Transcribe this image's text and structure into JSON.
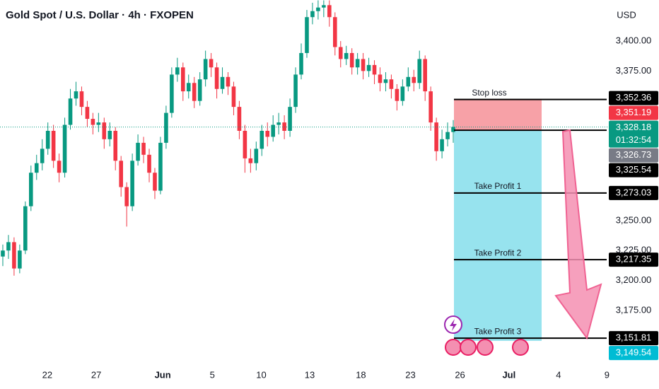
{
  "chart_data": {
    "type": "candlestick",
    "title": "Gold Spot / U.S. Dollar · 4h · FXOPEN",
    "currency": "USD",
    "up_color": "#089981",
    "down_color": "#f23645",
    "open": [
      3220,
      3225,
      3232,
      3210,
      3225,
      3262,
      3290,
      3298,
      3310,
      3325,
      3300,
      3290,
      3330,
      3352,
      3358,
      3345,
      3335,
      3330,
      3332,
      3318,
      3325,
      3300,
      3278,
      3262,
      3300,
      3315,
      3305,
      3290,
      3275,
      3315,
      3340,
      3372,
      3378,
      3358,
      3365,
      3350,
      3368,
      3385,
      3378,
      3360,
      3370,
      3362,
      3345,
      3325,
      3302,
      3298,
      3310,
      3325,
      3320,
      3330,
      3332,
      3325,
      3345,
      3372,
      3390,
      3420,
      3425,
      3428,
      3430,
      3420,
      3395,
      3385,
      3390,
      3378,
      3385,
      3375,
      3380,
      3372,
      3365,
      3368,
      3360,
      3350,
      3362,
      3370,
      3365,
      3385,
      3358,
      3332,
      3308,
      3318,
      3324
    ],
    "high": [
      3230,
      3238,
      3236,
      3230,
      3266,
      3296,
      3305,
      3318,
      3332,
      3330,
      3306,
      3336,
      3360,
      3366,
      3362,
      3350,
      3340,
      3340,
      3336,
      3332,
      3328,
      3304,
      3282,
      3306,
      3322,
      3320,
      3310,
      3294,
      3320,
      3346,
      3378,
      3386,
      3382,
      3372,
      3370,
      3374,
      3392,
      3390,
      3382,
      3378,
      3374,
      3366,
      3350,
      3330,
      3310,
      3316,
      3330,
      3332,
      3338,
      3340,
      3338,
      3352,
      3378,
      3398,
      3426,
      3432,
      3434,
      3434,
      3434,
      3424,
      3400,
      3396,
      3394,
      3390,
      3390,
      3386,
      3384,
      3378,
      3374,
      3372,
      3364,
      3368,
      3378,
      3376,
      3392,
      3388,
      3362,
      3336,
      3326,
      3332,
      3334
    ],
    "low": [
      3212,
      3218,
      3204,
      3206,
      3222,
      3258,
      3284,
      3292,
      3305,
      3294,
      3282,
      3286,
      3326,
      3346,
      3338,
      3328,
      3322,
      3324,
      3310,
      3312,
      3292,
      3270,
      3245,
      3258,
      3296,
      3298,
      3282,
      3268,
      3272,
      3310,
      3336,
      3366,
      3350,
      3352,
      3344,
      3346,
      3362,
      3370,
      3352,
      3356,
      3355,
      3338,
      3318,
      3290,
      3290,
      3292,
      3304,
      3312,
      3316,
      3322,
      3318,
      3320,
      3340,
      3368,
      3386,
      3414,
      3418,
      3420,
      3412,
      3388,
      3378,
      3380,
      3372,
      3372,
      3368,
      3370,
      3364,
      3358,
      3358,
      3352,
      3342,
      3346,
      3358,
      3358,
      3360,
      3350,
      3325,
      3300,
      3302,
      3312,
      3315
    ],
    "close": [
      3225,
      3232,
      3210,
      3225,
      3262,
      3290,
      3298,
      3310,
      3325,
      3300,
      3290,
      3330,
      3352,
      3358,
      3345,
      3335,
      3330,
      3332,
      3318,
      3325,
      3300,
      3278,
      3262,
      3300,
      3315,
      3305,
      3290,
      3275,
      3315,
      3340,
      3372,
      3378,
      3358,
      3365,
      3350,
      3368,
      3385,
      3378,
      3360,
      3370,
      3362,
      3345,
      3325,
      3302,
      3298,
      3310,
      3325,
      3320,
      3330,
      3332,
      3325,
      3345,
      3372,
      3390,
      3420,
      3425,
      3428,
      3430,
      3420,
      3395,
      3385,
      3390,
      3378,
      3385,
      3375,
      3380,
      3372,
      3365,
      3368,
      3360,
      3350,
      3362,
      3370,
      3365,
      3385,
      3358,
      3332,
      3308,
      3318,
      3324,
      3328.18
    ],
    "ylim": [
      3130,
      3434.3
    ],
    "yticks": [
      {
        "value": 3400,
        "label": "3,400.00"
      },
      {
        "value": 3375,
        "label": "3,375.00"
      },
      {
        "value": 3250,
        "label": "3,250.00"
      },
      {
        "value": 3225,
        "label": "3,225.00"
      },
      {
        "value": 3200,
        "label": "3,200.00"
      },
      {
        "value": 3175,
        "label": "3,175.00"
      }
    ],
    "xlim": [
      -0.5,
      107.5
    ],
    "xticks": [
      {
        "value": 7.9,
        "label": "22"
      },
      {
        "value": 16.6,
        "label": "27"
      },
      {
        "value": 28.4,
        "label": "Jun"
      },
      {
        "value": 37.2,
        "label": "5"
      },
      {
        "value": 45.9,
        "label": "10"
      },
      {
        "value": 54.5,
        "label": "13"
      },
      {
        "value": 63.6,
        "label": "18"
      },
      {
        "value": 72.4,
        "label": "23"
      },
      {
        "value": 81.2,
        "label": "26"
      },
      {
        "value": 89.9,
        "label": "Jul"
      },
      {
        "value": 98.7,
        "label": "4"
      },
      {
        "value": 107.3,
        "label": "9"
      }
    ],
    "price_labels": [
      {
        "value": 3352.36,
        "label": "3,352.36",
        "color": "#000000"
      },
      {
        "value": 3351.19,
        "label": "3,351.19",
        "color": "#f23645"
      },
      {
        "value": 3328.18,
        "label": "3,328.18",
        "color": "#089981",
        "countdown": "01:32:54"
      },
      {
        "value": 3326.73,
        "label": "3,326.73",
        "color": "#787b86"
      },
      {
        "value": 3325.54,
        "label": "3,325.54",
        "color": "#000000"
      },
      {
        "value": 3273.03,
        "label": "3,273.03",
        "color": "#000000"
      },
      {
        "value": 3217.35,
        "label": "3,217.35",
        "color": "#000000"
      },
      {
        "value": 3151.81,
        "label": "3,151.81",
        "color": "#000000"
      },
      {
        "value": 3149.54,
        "label": "3,149.54",
        "color": "#00bcd4"
      }
    ],
    "position": {
      "stop_label": "Stop loss",
      "stop": 3351.19,
      "entry": 3325.54,
      "bottom": 3149.54,
      "targets": [
        {
          "name": "Take Profit 1",
          "value": 3273.03
        },
        {
          "name": "Take Profit 2",
          "value": 3217.35
        },
        {
          "name": "Take Profit 3",
          "value": 3151.81
        }
      ]
    }
  }
}
